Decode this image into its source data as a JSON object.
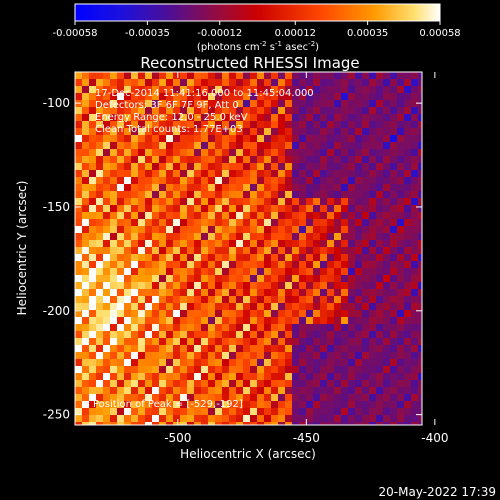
{
  "colorbar": {
    "ticks": [
      "-0.00058",
      "-0.00035",
      "-0.00012",
      "0.00012",
      "0.00035",
      "0.00058"
    ],
    "tick_values": [
      -0.00058,
      -0.00035,
      -0.00012,
      0.00012,
      0.00035,
      0.00058
    ],
    "range": [
      -0.00058,
      0.00058
    ],
    "label_main": "(photons cm",
    "label_exp1": "-2",
    "label_mid1": " s",
    "label_exp2": "-1",
    "label_mid2": " asec",
    "label_exp3": "-2",
    "label_end": ")"
  },
  "colors": {
    "min": "#0000ff",
    "low": "#5a1a8c",
    "mid": "#cc0000",
    "high": "#ff8c00",
    "max": "#ffffff"
  },
  "chart_data": {
    "type": "heatmap",
    "title": "Reconstructed RHESSI Image",
    "xlabel": "Heliocentric X (arcsec)",
    "ylabel": "Heliocentric Y (arcsec)",
    "xlim": [
      -540,
      -405
    ],
    "ylim": [
      -255,
      -85
    ],
    "xticks": [
      -500,
      -450,
      -400
    ],
    "xtick_labels": [
      "-500",
      "-450",
      "-400"
    ],
    "yticks": [
      -250,
      -200,
      -150,
      -100
    ],
    "ytick_labels": [
      "-250",
      "-200",
      "-150",
      "-100"
    ],
    "annotations": [
      "17-Dec-2014 11:41:16.000 to 11:45:04.000",
      "Detectors: 3F 6F 7F 9F, Att 0",
      "Energy Range: 12.0 - 25.0 keV",
      "Clean     Total counts: 1.77E+03"
    ],
    "peak_label": "Position of Peak = [-529,-192]",
    "peak": [
      -529,
      -192
    ]
  },
  "footer": {
    "date": "20-May-2022 17:39"
  }
}
